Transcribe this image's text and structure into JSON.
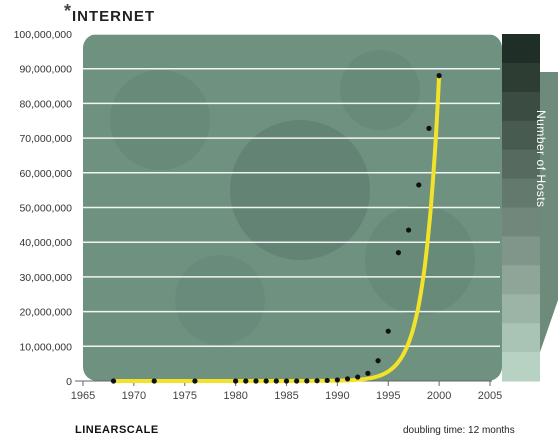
{
  "header": {
    "star": "*",
    "title": "INTERNET"
  },
  "footer": {
    "scale_label": "LINEARSCALE",
    "doubling": "doubling time: 12 months"
  },
  "side_label": "Number of Hosts",
  "colors": {
    "curve": "#f2e32a",
    "background": "#6f9180",
    "points": "#111111",
    "band_dark": "#1f3a2c",
    "band_light": "#a9c8b8"
  },
  "chart_data": {
    "type": "scatter",
    "title": "INTERNET",
    "xlabel": "",
    "ylabel": "Number of Hosts",
    "xlim": [
      1965,
      2005
    ],
    "ylim": [
      0,
      100000000
    ],
    "x_ticks": [
      "1965",
      "1970",
      "1975",
      "1980",
      "1985",
      "1990",
      "1995",
      "2000",
      "2005"
    ],
    "y_ticks": [
      "0",
      "10,000,000",
      "20,000,000",
      "30,000,000",
      "40,000,000",
      "50,000,000",
      "60,000,000",
      "70,000,000",
      "80,000,000",
      "90,000,000",
      "100,000,000"
    ],
    "points": [
      [
        1968,
        4
      ],
      [
        1972,
        23
      ],
      [
        1976,
        100
      ],
      [
        1980,
        200
      ],
      [
        1981,
        213
      ],
      [
        1982,
        235
      ],
      [
        1983,
        562
      ],
      [
        1984,
        1024
      ],
      [
        1985,
        1961
      ],
      [
        1986,
        5089
      ],
      [
        1987,
        28174
      ],
      [
        1988,
        80000
      ],
      [
        1989,
        159000
      ],
      [
        1990,
        313000
      ],
      [
        1991,
        617000
      ],
      [
        1992,
        1136000
      ],
      [
        1993,
        2217000
      ],
      [
        1994,
        5846000
      ],
      [
        1995,
        14352000
      ],
      [
        1996,
        37000000
      ],
      [
        1997,
        43500000
      ],
      [
        1998,
        56500000
      ],
      [
        1999,
        72800000
      ],
      [
        2000,
        88000000
      ]
    ],
    "curve_label": "doubling time: 12 months",
    "grid": true
  }
}
